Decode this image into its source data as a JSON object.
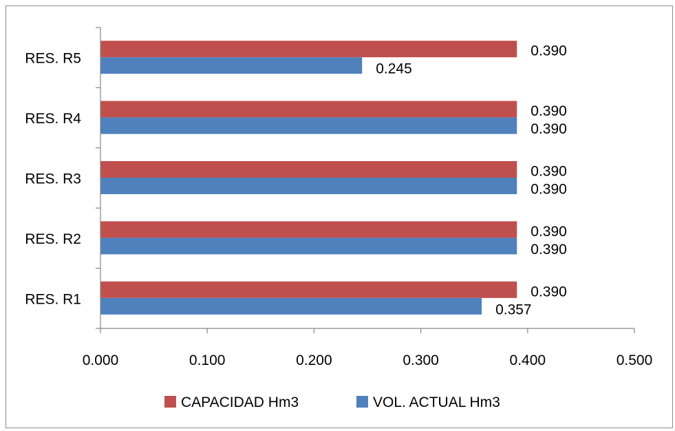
{
  "chart_data": {
    "type": "bar",
    "orientation": "horizontal",
    "categories": [
      "RES. R1",
      "RES. R2",
      "RES. R3",
      "RES. R4",
      "RES. R5"
    ],
    "series": [
      {
        "name": "CAPACIDAD Hm3",
        "color": "#c0504d",
        "values": [
          0.39,
          0.39,
          0.39,
          0.39,
          0.39
        ],
        "labels": [
          "0.390",
          "0.390",
          "0.390",
          "0.390",
          "0.390"
        ]
      },
      {
        "name": "VOL. ACTUAL Hm3",
        "color": "#4f81bd",
        "values": [
          0.357,
          0.39,
          0.39,
          0.39,
          0.245
        ],
        "labels": [
          "0.357",
          "0.390",
          "0.390",
          "0.390",
          "0.245"
        ]
      }
    ],
    "x_ticks": [
      "0.000",
      "0.100",
      "0.200",
      "0.300",
      "0.400",
      "0.500"
    ],
    "xlim": [
      0,
      0.5
    ],
    "grid": false,
    "legend_position": "bottom",
    "title": "",
    "xlabel": "",
    "ylabel": ""
  }
}
